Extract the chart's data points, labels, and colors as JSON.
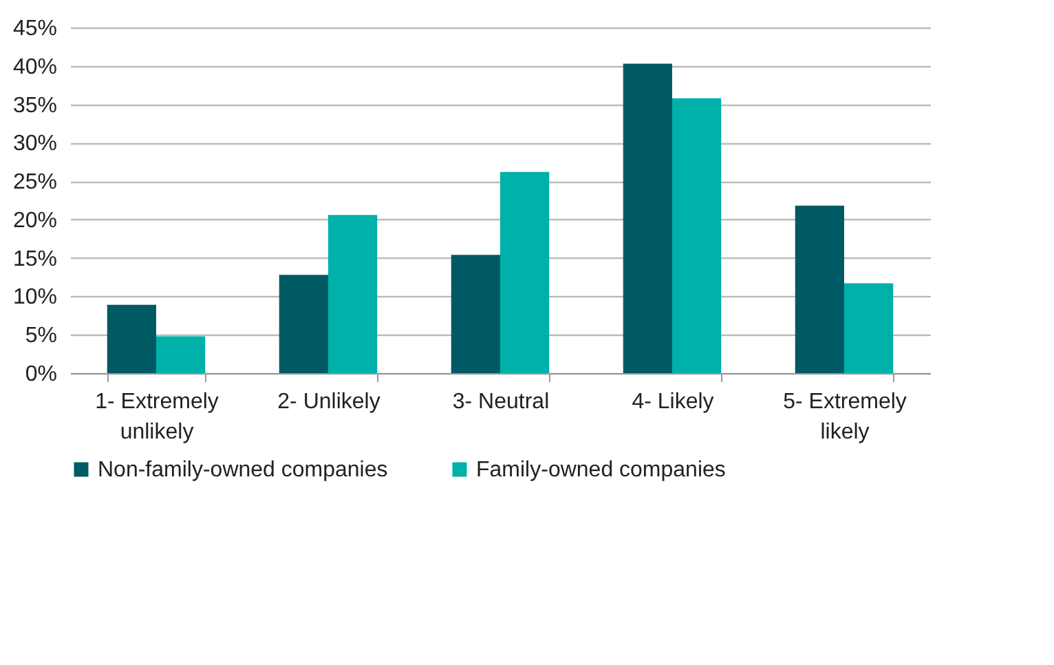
{
  "chart_data": {
    "type": "bar",
    "categories": [
      "1- Extremely unlikely",
      "2- Unlikely",
      "3- Neutral",
      "4- Likely",
      "5- Extremely likely"
    ],
    "series": [
      {
        "name": "Non-family-owned companies",
        "color": "#005a64",
        "values": [
          8.9,
          12.8,
          15.4,
          40.3,
          21.8
        ]
      },
      {
        "name": "Family-owned companies",
        "color": "#00b1aa",
        "values": [
          4.8,
          20.6,
          26.2,
          35.8,
          11.7
        ]
      }
    ],
    "ylim": [
      0,
      45
    ],
    "yticks": [
      {
        "value": 0,
        "label": "0%"
      },
      {
        "value": 5,
        "label": "5%"
      },
      {
        "value": 10,
        "label": "10%"
      },
      {
        "value": 15,
        "label": "15%"
      },
      {
        "value": 20,
        "label": "20%"
      },
      {
        "value": 25,
        "label": "25%"
      },
      {
        "value": 30,
        "label": "30%"
      },
      {
        "value": 35,
        "label": "35%"
      },
      {
        "value": 40,
        "label": "40%"
      },
      {
        "value": 45,
        "label": "45%"
      }
    ],
    "grid": "y",
    "legend": "bottom"
  }
}
